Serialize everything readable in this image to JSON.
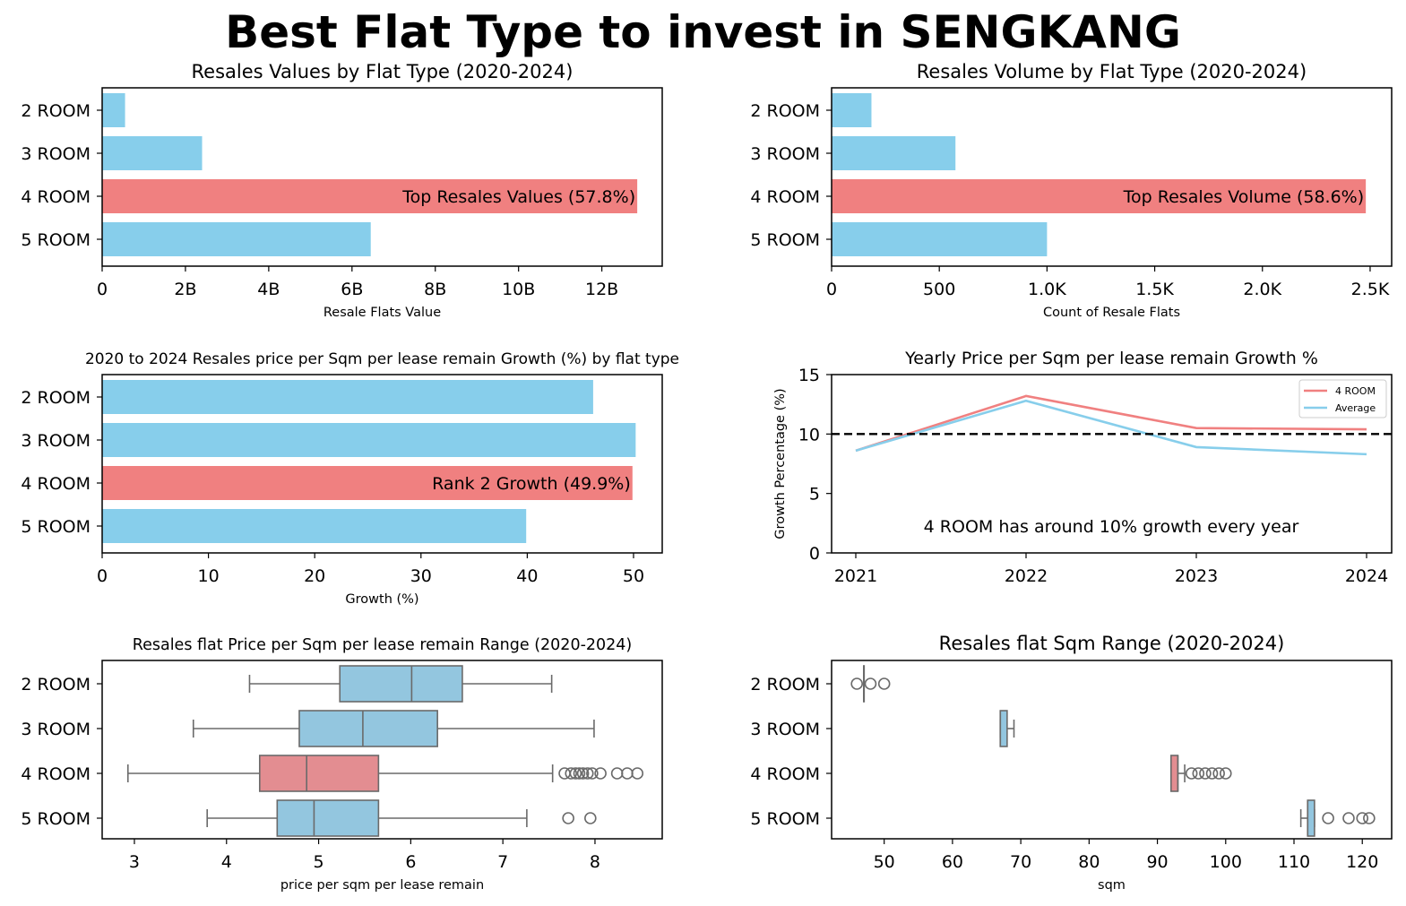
{
  "title": "Best Flat Type to invest in SENGKANG",
  "colors": {
    "highlight": "#f08080",
    "base": "#87ceeb",
    "box_highlight": "#e38d91",
    "box_base": "#93c6df",
    "whisker": "#6a6a6a"
  },
  "chart_data": [
    {
      "type": "bar",
      "orientation": "horizontal",
      "title": "Resales Values by Flat Type (2020-2024)",
      "xlabel": "Resale Flats Value",
      "categories": [
        "2 ROOM",
        "3 ROOM",
        "4 ROOM",
        "5 ROOM"
      ],
      "values": [
        550000000,
        2400000000,
        12850000000,
        6450000000
      ],
      "highlight": "4 ROOM",
      "annotation": "Top Resales Values (57.8%)",
      "xlim": [
        0,
        13450000000
      ],
      "xticks": [
        0,
        2000000000,
        4000000000,
        6000000000,
        8000000000,
        10000000000,
        12000000000
      ],
      "xtick_labels": [
        "0",
        "2B",
        "4B",
        "6B",
        "8B",
        "10B",
        "12B"
      ]
    },
    {
      "type": "bar",
      "orientation": "horizontal",
      "title": "Resales Volume by Flat Type (2020-2024)",
      "xlabel": "Count of Resale Flats",
      "categories": [
        "2 ROOM",
        "3 ROOM",
        "4 ROOM",
        "5 ROOM"
      ],
      "values": [
        185,
        575,
        2480,
        1000
      ],
      "highlight": "4 ROOM",
      "annotation": "Top Resales Volume (58.6%)",
      "xlim": [
        0,
        2600
      ],
      "xticks": [
        0,
        500,
        1000,
        1500,
        2000,
        2500
      ],
      "xtick_labels": [
        "0",
        "500",
        "1.0K",
        "1.5K",
        "2.0K",
        "2.5K"
      ]
    },
    {
      "type": "bar",
      "orientation": "horizontal",
      "title": "2020 to 2024 Resales price per Sqm per lease remain Growth (%) by flat type",
      "xlabel": "Growth (%)",
      "categories": [
        "2 ROOM",
        "3 ROOM",
        "4 ROOM",
        "5 ROOM"
      ],
      "values": [
        46.2,
        50.2,
        49.9,
        39.9
      ],
      "highlight": "4 ROOM",
      "annotation": "Rank 2 Growth (49.9%)",
      "xlim": [
        0,
        52.7
      ],
      "xticks": [
        0,
        10,
        20,
        30,
        40,
        50
      ],
      "xtick_labels": [
        "0",
        "10",
        "20",
        "30",
        "40",
        "50"
      ]
    },
    {
      "type": "line",
      "title": "Yearly Price per Sqm per lease remain Growth %",
      "ylabel": "Growth Percentage (%)",
      "x": [
        "2021",
        "2022",
        "2023",
        "2024"
      ],
      "series": [
        {
          "name": "4 ROOM",
          "values": [
            8.6,
            13.2,
            10.5,
            10.4
          ],
          "color": "#f08080"
        },
        {
          "name": "Average",
          "values": [
            8.6,
            12.8,
            8.9,
            8.3
          ],
          "color": "#87ceeb"
        }
      ],
      "reference_line": 10,
      "annotation": "4 ROOM has around 10% growth every year",
      "ylim": [
        0,
        15
      ],
      "yticks": [
        0,
        5,
        10,
        15
      ],
      "legend": "top-right"
    },
    {
      "type": "box",
      "orientation": "horizontal",
      "title": "Resales flat Price per Sqm per lease remain Range (2020-2024)",
      "xlabel": "price per sqm per lease remain",
      "categories": [
        "2 ROOM",
        "3 ROOM",
        "4 ROOM",
        "5 ROOM"
      ],
      "boxes": [
        {
          "whislo": 4.25,
          "q1": 5.23,
          "med": 6.01,
          "q3": 6.56,
          "whishi": 7.53,
          "fliers": []
        },
        {
          "whislo": 3.64,
          "q1": 4.79,
          "med": 5.48,
          "q3": 6.29,
          "whishi": 7.99,
          "fliers": []
        },
        {
          "whislo": 2.93,
          "q1": 4.36,
          "med": 4.87,
          "q3": 5.65,
          "whishi": 7.54,
          "fliers": [
            7.67,
            7.74,
            7.79,
            7.83,
            7.87,
            7.92,
            7.97,
            8.06,
            8.24,
            8.35,
            8.46
          ]
        },
        {
          "whislo": 3.79,
          "q1": 4.55,
          "med": 4.95,
          "q3": 5.65,
          "whishi": 7.26,
          "fliers": [
            7.71,
            7.95
          ]
        }
      ],
      "highlight": "4 ROOM",
      "xlim": [
        2.65,
        8.73
      ],
      "xticks": [
        3,
        4,
        5,
        6,
        7,
        8
      ]
    },
    {
      "type": "box",
      "orientation": "horizontal",
      "title": "Resales flat Sqm Range (2020-2024)",
      "xlabel": "sqm",
      "categories": [
        "2 ROOM",
        "3 ROOM",
        "4 ROOM",
        "5 ROOM"
      ],
      "boxes": [
        {
          "whislo": 47,
          "q1": 47,
          "med": 47,
          "q3": 47,
          "whishi": 47,
          "fliers": [
            46,
            48,
            50
          ]
        },
        {
          "whislo": 67,
          "q1": 67,
          "med": 67,
          "q3": 68,
          "whishi": 69,
          "fliers": []
        },
        {
          "whislo": 92,
          "q1": 92,
          "med": 93,
          "q3": 93,
          "whishi": 94,
          "fliers": [
            95,
            96,
            97,
            98,
            99,
            100
          ]
        },
        {
          "whislo": 111,
          "q1": 112,
          "med": 112,
          "q3": 113,
          "whishi": 113,
          "fliers": [
            115,
            118,
            120,
            121
          ]
        }
      ],
      "highlight": "4 ROOM",
      "xlim": [
        42.3,
        124.3
      ],
      "xticks": [
        50,
        60,
        70,
        80,
        90,
        100,
        110,
        120
      ]
    }
  ]
}
